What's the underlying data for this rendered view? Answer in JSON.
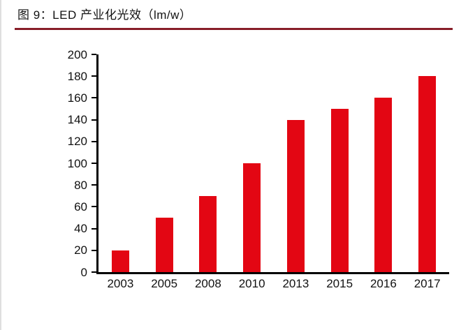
{
  "figure": {
    "title": "图 9：LED 产业化光效（lm/w）"
  },
  "colors": {
    "bar": "#e30613",
    "axis": "#000000",
    "title_rule": "#871d28",
    "text": "#121212"
  },
  "chart_data": {
    "type": "bar",
    "title": "图 9：LED 产业化光效（lm/w）",
    "categories": [
      "2003",
      "2005",
      "2008",
      "2010",
      "2013",
      "2015",
      "2016",
      "2017"
    ],
    "values": [
      20,
      50,
      70,
      100,
      140,
      150,
      160,
      180
    ],
    "xlabel": "",
    "ylabel": "",
    "unit": "lm/w",
    "ylim": [
      0,
      200
    ],
    "yticks": [
      0,
      20,
      40,
      60,
      80,
      100,
      120,
      140,
      160,
      180,
      200
    ],
    "grid": false,
    "legend": "none",
    "bar_color": "#e30613"
  }
}
